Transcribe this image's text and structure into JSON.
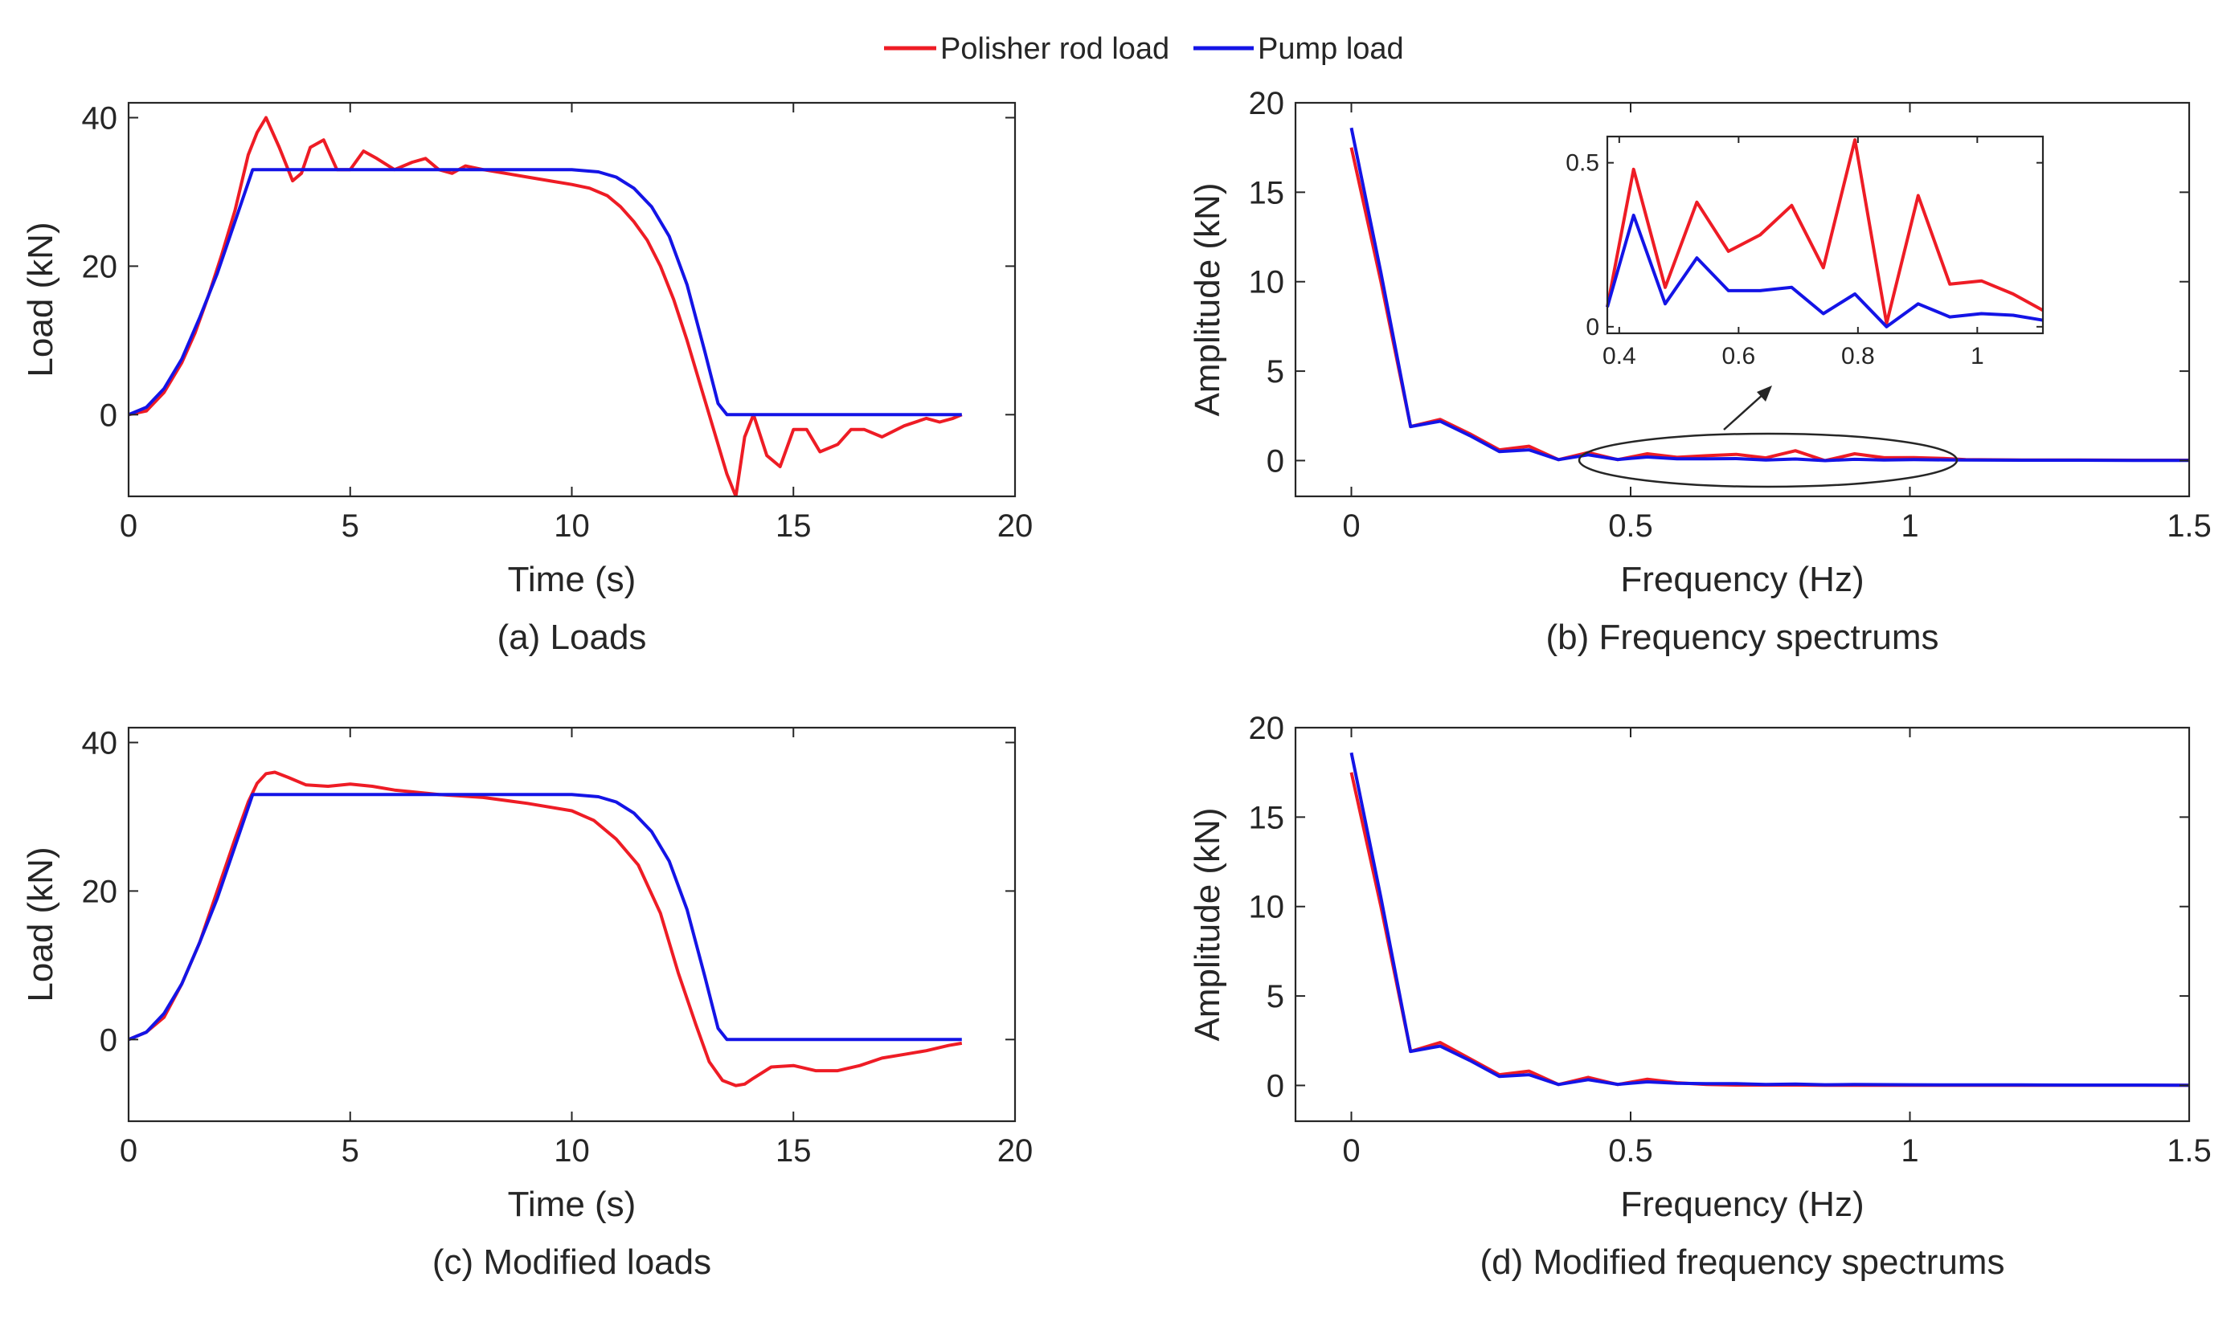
{
  "colors": {
    "red": "#ee1c25",
    "blue": "#1414e6",
    "axis": "#262626"
  },
  "legend": {
    "entries": [
      "Polisher rod load",
      "Pump load"
    ]
  },
  "chart_data": [
    {
      "id": "a",
      "type": "line",
      "caption": "(a) Loads",
      "xlabel": "Time (s)",
      "ylabel": "Load (kN)",
      "xlim": [
        0,
        20
      ],
      "ylim": [
        -11,
        42
      ],
      "xticks": [
        0,
        5,
        10,
        15,
        20
      ],
      "yticks": [
        0,
        20,
        40
      ],
      "grid": false,
      "series": [
        {
          "name": "Polisher rod load",
          "color": "red",
          "x": [
            0,
            0.4,
            0.8,
            1.2,
            1.5,
            1.8,
            2.1,
            2.4,
            2.7,
            2.9,
            3.1,
            3.4,
            3.7,
            3.9,
            4.1,
            4.4,
            4.7,
            5,
            5.3,
            5.6,
            6,
            6.4,
            6.7,
            7,
            7.3,
            7.6,
            8,
            8.5,
            9,
            9.5,
            10,
            10.4,
            10.8,
            11.1,
            11.4,
            11.7,
            12,
            12.3,
            12.6,
            12.9,
            13.2,
            13.5,
            13.7,
            13.9,
            14.1,
            14.4,
            14.7,
            15,
            15.3,
            15.6,
            16,
            16.3,
            16.6,
            17,
            17.5,
            18,
            18.3,
            18.6,
            18.8
          ],
          "y": [
            0,
            0.5,
            3,
            7,
            11,
            16,
            21.5,
            27.5,
            35,
            38,
            40,
            36,
            31.5,
            32.5,
            36,
            37,
            33,
            33,
            35.5,
            34.5,
            33,
            34,
            34.5,
            33,
            32.5,
            33.5,
            33,
            32.5,
            32,
            31.5,
            31,
            30.5,
            29.5,
            28,
            26,
            23.5,
            20,
            15.5,
            10,
            4,
            -2,
            -8,
            -11,
            -3,
            0,
            -5.5,
            -7,
            -2,
            -2,
            -5,
            -4,
            -2,
            -2,
            -3,
            -1.5,
            -0.5,
            -1,
            -0.5,
            0
          ]
        },
        {
          "name": "Pump load",
          "color": "blue",
          "x": [
            0,
            0.4,
            0.8,
            1.2,
            1.6,
            2,
            2.4,
            2.8,
            4,
            6,
            8,
            10,
            10.6,
            11,
            11.4,
            11.8,
            12.2,
            12.6,
            13,
            13.3,
            13.5,
            14,
            16,
            18,
            18.8
          ],
          "y": [
            0,
            1,
            3.5,
            7.5,
            13,
            19,
            26,
            33,
            33,
            33,
            33,
            33,
            32.7,
            32,
            30.5,
            28,
            24,
            17.5,
            8.5,
            1.5,
            0,
            0,
            0,
            0,
            0
          ]
        }
      ]
    },
    {
      "id": "b",
      "type": "line",
      "caption": "(b) Frequency spectrums",
      "xlabel": "Frequency (Hz)",
      "ylabel": "Amplitude (kN)",
      "xlim": [
        -0.1,
        1.5
      ],
      "ylim": [
        -2,
        20
      ],
      "xticks": [
        0,
        0.5,
        1,
        1.5
      ],
      "yticks": [
        0,
        5,
        10,
        15,
        20
      ],
      "grid": false,
      "series": [
        {
          "name": "Polisher rod load",
          "color": "red",
          "x": [
            0,
            0.053,
            0.106,
            0.159,
            0.212,
            0.265,
            0.318,
            0.371,
            0.424,
            0.477,
            0.53,
            0.583,
            0.636,
            0.689,
            0.742,
            0.795,
            0.848,
            0.901,
            0.954,
            1.007,
            1.06,
            1.1,
            1.2,
            1.3,
            1.4,
            1.5
          ],
          "y": [
            17.5,
            10,
            1.9,
            2.3,
            1.5,
            0.6,
            0.8,
            0.05,
            0.45,
            0.05,
            0.38,
            0.18,
            0.27,
            0.35,
            0.15,
            0.55,
            0,
            0.38,
            0.16,
            0.17,
            0.12,
            0.05,
            0.03,
            0.03,
            0.02,
            0.02
          ]
        },
        {
          "name": "Pump load",
          "color": "blue",
          "x": [
            0,
            0.053,
            0.106,
            0.159,
            0.212,
            0.265,
            0.318,
            0.371,
            0.424,
            0.477,
            0.53,
            0.583,
            0.636,
            0.689,
            0.742,
            0.795,
            0.848,
            0.901,
            0.954,
            1.007,
            1.06,
            1.1,
            1.2,
            1.3,
            1.4,
            1.5
          ],
          "y": [
            18.6,
            10.5,
            1.9,
            2.2,
            1.4,
            0.5,
            0.6,
            0.05,
            0.32,
            0.06,
            0.2,
            0.1,
            0.1,
            0.11,
            0.03,
            0.09,
            0,
            0.07,
            0.03,
            0.05,
            0.04,
            0.03,
            0.02,
            0.02,
            0.01,
            0.01
          ]
        }
      ],
      "inset": {
        "xlim": [
          0.38,
          1.11
        ],
        "ylim": [
          -0.02,
          0.58
        ],
        "xticks": [
          0.4,
          0.6,
          0.8,
          1
        ],
        "yticks": [
          0,
          0.5
        ],
        "red_x": [
          0.38,
          0.424,
          0.477,
          0.53,
          0.583,
          0.636,
          0.689,
          0.742,
          0.795,
          0.848,
          0.901,
          0.954,
          1.007,
          1.06,
          1.11
        ],
        "red_y": [
          0.06,
          0.48,
          0.12,
          0.38,
          0.23,
          0.28,
          0.37,
          0.18,
          0.57,
          0.01,
          0.4,
          0.13,
          0.14,
          0.1,
          0.05
        ],
        "blue_x": [
          0.38,
          0.424,
          0.477,
          0.53,
          0.583,
          0.636,
          0.689,
          0.742,
          0.795,
          0.848,
          0.901,
          0.954,
          1.007,
          1.06,
          1.11
        ],
        "blue_y": [
          0.06,
          0.34,
          0.07,
          0.21,
          0.11,
          0.11,
          0.12,
          0.04,
          0.1,
          0,
          0.07,
          0.03,
          0.04,
          0.035,
          0.02
        ]
      }
    },
    {
      "id": "c",
      "type": "line",
      "caption": "(c) Modified loads",
      "xlabel": "Time (s)",
      "ylabel": "Load (kN)",
      "xlim": [
        0,
        20
      ],
      "ylim": [
        -11,
        42
      ],
      "xticks": [
        0,
        5,
        10,
        15,
        20
      ],
      "yticks": [
        0,
        20,
        40
      ],
      "grid": false,
      "series": [
        {
          "name": "Polisher rod load",
          "color": "red",
          "x": [
            0,
            0.4,
            0.8,
            1.2,
            1.6,
            2,
            2.4,
            2.7,
            2.9,
            3.1,
            3.3,
            3.6,
            4,
            4.5,
            5,
            5.5,
            6,
            7,
            8,
            9,
            10,
            10.5,
            11,
            11.5,
            12,
            12.4,
            12.8,
            13.1,
            13.4,
            13.7,
            13.9,
            14.1,
            14.5,
            15,
            15.5,
            16,
            16.5,
            17,
            17.5,
            18,
            18.5,
            18.8
          ],
          "y": [
            0,
            1,
            3,
            7.5,
            13,
            20,
            27,
            32,
            34.5,
            35.8,
            36,
            35.3,
            34.3,
            34.1,
            34.4,
            34.1,
            33.6,
            33,
            32.6,
            31.8,
            30.8,
            29.5,
            27,
            23.5,
            17,
            9,
            2,
            -3,
            -5.5,
            -6.2,
            -6,
            -5.2,
            -3.7,
            -3.5,
            -4.2,
            -4.2,
            -3.5,
            -2.5,
            -2,
            -1.5,
            -0.8,
            -0.5
          ]
        },
        {
          "name": "Pump load",
          "color": "blue",
          "x": [
            0,
            0.4,
            0.8,
            1.2,
            1.6,
            2,
            2.4,
            2.8,
            4,
            6,
            8,
            10,
            10.6,
            11,
            11.4,
            11.8,
            12.2,
            12.6,
            13,
            13.3,
            13.5,
            14,
            16,
            18,
            18.8
          ],
          "y": [
            0,
            1,
            3.5,
            7.5,
            13,
            19,
            26,
            33,
            33,
            33,
            33,
            33,
            32.7,
            32,
            30.5,
            28,
            24,
            17.5,
            8.5,
            1.5,
            0,
            0,
            0,
            0,
            0
          ]
        }
      ]
    },
    {
      "id": "d",
      "type": "line",
      "caption": "(d) Modified frequency spectrums",
      "xlabel": "Frequency (Hz)",
      "ylabel": "Amplitude (kN)",
      "xlim": [
        -0.1,
        1.5
      ],
      "ylim": [
        -2,
        20
      ],
      "xticks": [
        0,
        0.5,
        1,
        1.5
      ],
      "yticks": [
        0,
        5,
        10,
        15,
        20
      ],
      "grid": false,
      "series": [
        {
          "name": "Polisher rod load",
          "color": "red",
          "x": [
            0,
            0.053,
            0.106,
            0.159,
            0.212,
            0.265,
            0.318,
            0.371,
            0.424,
            0.477,
            0.53,
            0.583,
            0.636,
            0.689,
            0.742,
            0.795,
            0.848,
            0.9,
            1,
            1.1,
            1.2,
            1.3,
            1.4,
            1.5
          ],
          "y": [
            17.5,
            10,
            1.9,
            2.4,
            1.5,
            0.6,
            0.8,
            0.05,
            0.45,
            0.05,
            0.35,
            0.15,
            0.05,
            0.02,
            0.02,
            0.02,
            0.01,
            0.01,
            0.01,
            0.01,
            0.01,
            0.01,
            0.01,
            0.01
          ]
        },
        {
          "name": "Pump load",
          "color": "blue",
          "x": [
            0,
            0.053,
            0.106,
            0.159,
            0.212,
            0.265,
            0.318,
            0.371,
            0.424,
            0.477,
            0.53,
            0.583,
            0.636,
            0.689,
            0.742,
            0.795,
            0.848,
            0.9,
            1,
            1.1,
            1.2,
            1.3,
            1.4,
            1.5
          ],
          "y": [
            18.6,
            10.5,
            1.9,
            2.2,
            1.4,
            0.5,
            0.6,
            0.05,
            0.32,
            0.06,
            0.2,
            0.12,
            0.1,
            0.1,
            0.05,
            0.08,
            0.04,
            0.05,
            0.04,
            0.03,
            0.03,
            0.02,
            0.02,
            0.01
          ]
        }
      ]
    }
  ]
}
